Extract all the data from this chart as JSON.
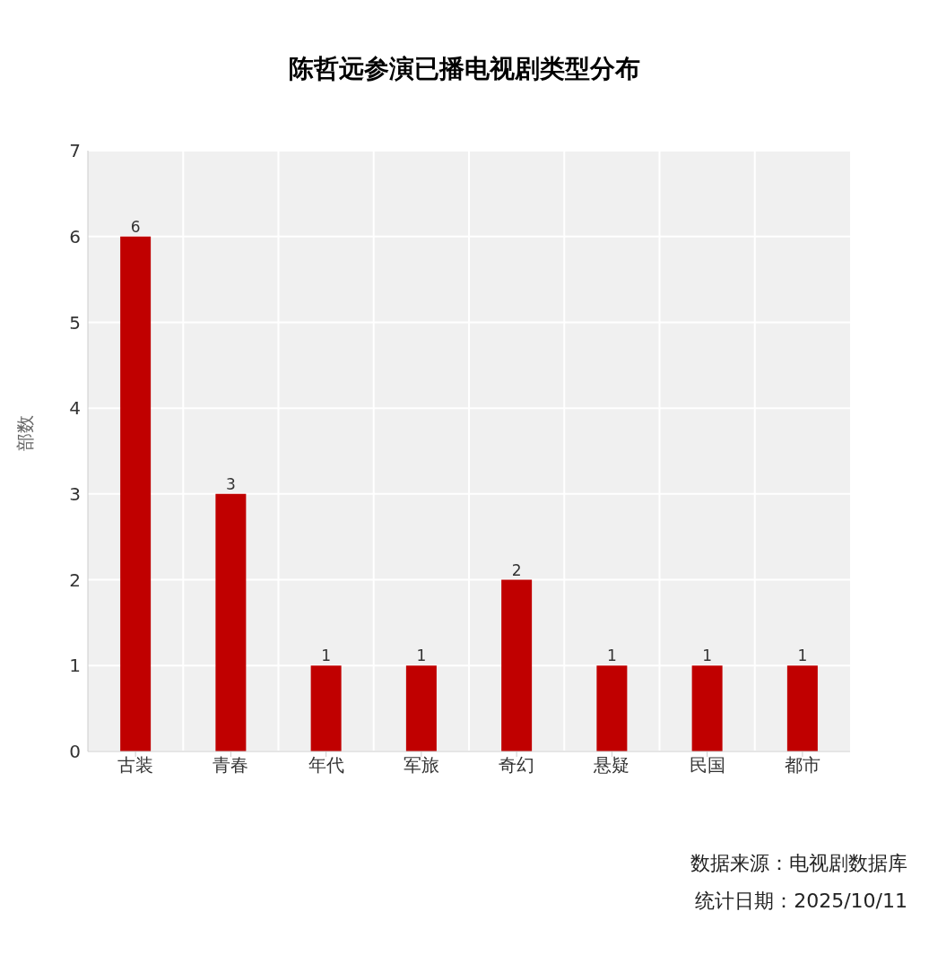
{
  "chart_data": {
    "type": "bar",
    "title": "陈哲远参演已播电视剧类型分布",
    "ylabel": "部数",
    "categories": [
      "古装",
      "青春",
      "年代",
      "军旅",
      "奇幻",
      "悬疑",
      "民国",
      "都市"
    ],
    "values": [
      6,
      3,
      1,
      1,
      2,
      1,
      1,
      1
    ],
    "color": "#c00000",
    "ylim": [
      0,
      7
    ],
    "yticks": [
      0,
      1,
      2,
      3,
      4,
      5,
      6,
      7
    ],
    "grid": true,
    "data_labels": true,
    "annotations": [
      "数据来源：电视剧数据库",
      "统计日期：2025/10/11"
    ]
  }
}
